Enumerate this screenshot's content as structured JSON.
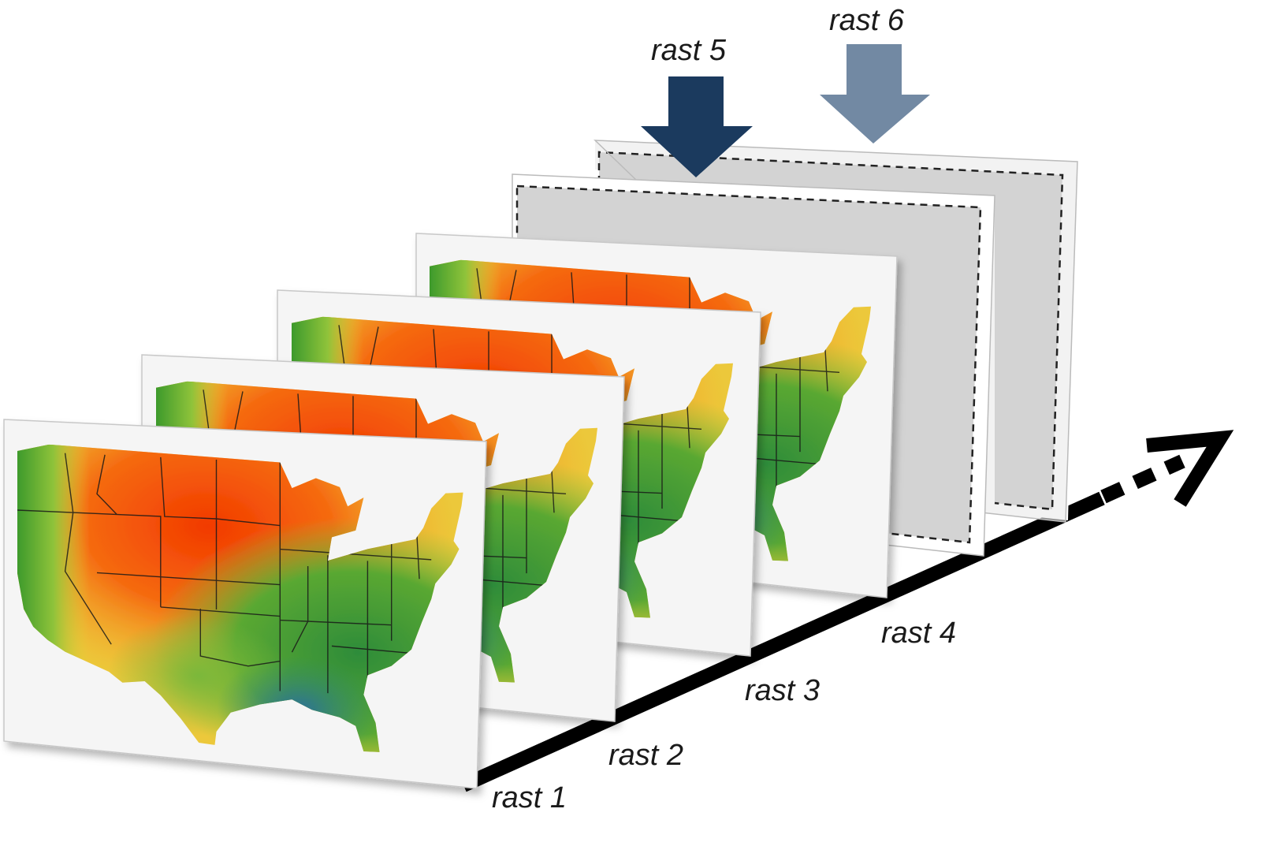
{
  "labels": {
    "rast1": "rast 1",
    "rast2": "rast 2",
    "rast3": "rast 3",
    "rast4": "rast 4",
    "rast5": "rast 5",
    "rast6": "rast 6"
  },
  "colors": {
    "timeline": "#000000",
    "arrow_rast5": "#1b3a5e",
    "arrow_rast6": "#7289a3",
    "empty_panel": "#d3d3d3",
    "panel_bg": "#f5f5f5",
    "map_palette": [
      "#f23a00",
      "#f5a42a",
      "#e8d238",
      "#8fc33a",
      "#3d9a2c",
      "#2a8a6e",
      "#2b6f9c"
    ]
  },
  "panels": [
    {
      "label_ref": "rast1",
      "content": "map",
      "icon": "usa-raster-map"
    },
    {
      "label_ref": "rast2",
      "content": "map",
      "icon": "usa-raster-map"
    },
    {
      "label_ref": "rast3",
      "content": "map",
      "icon": "usa-raster-map"
    },
    {
      "label_ref": "rast4",
      "content": "map",
      "icon": "usa-raster-map"
    },
    {
      "label_ref": "rast5",
      "content": "empty",
      "icon": "placeholder"
    },
    {
      "label_ref": "rast6",
      "content": "empty",
      "icon": "placeholder"
    }
  ]
}
